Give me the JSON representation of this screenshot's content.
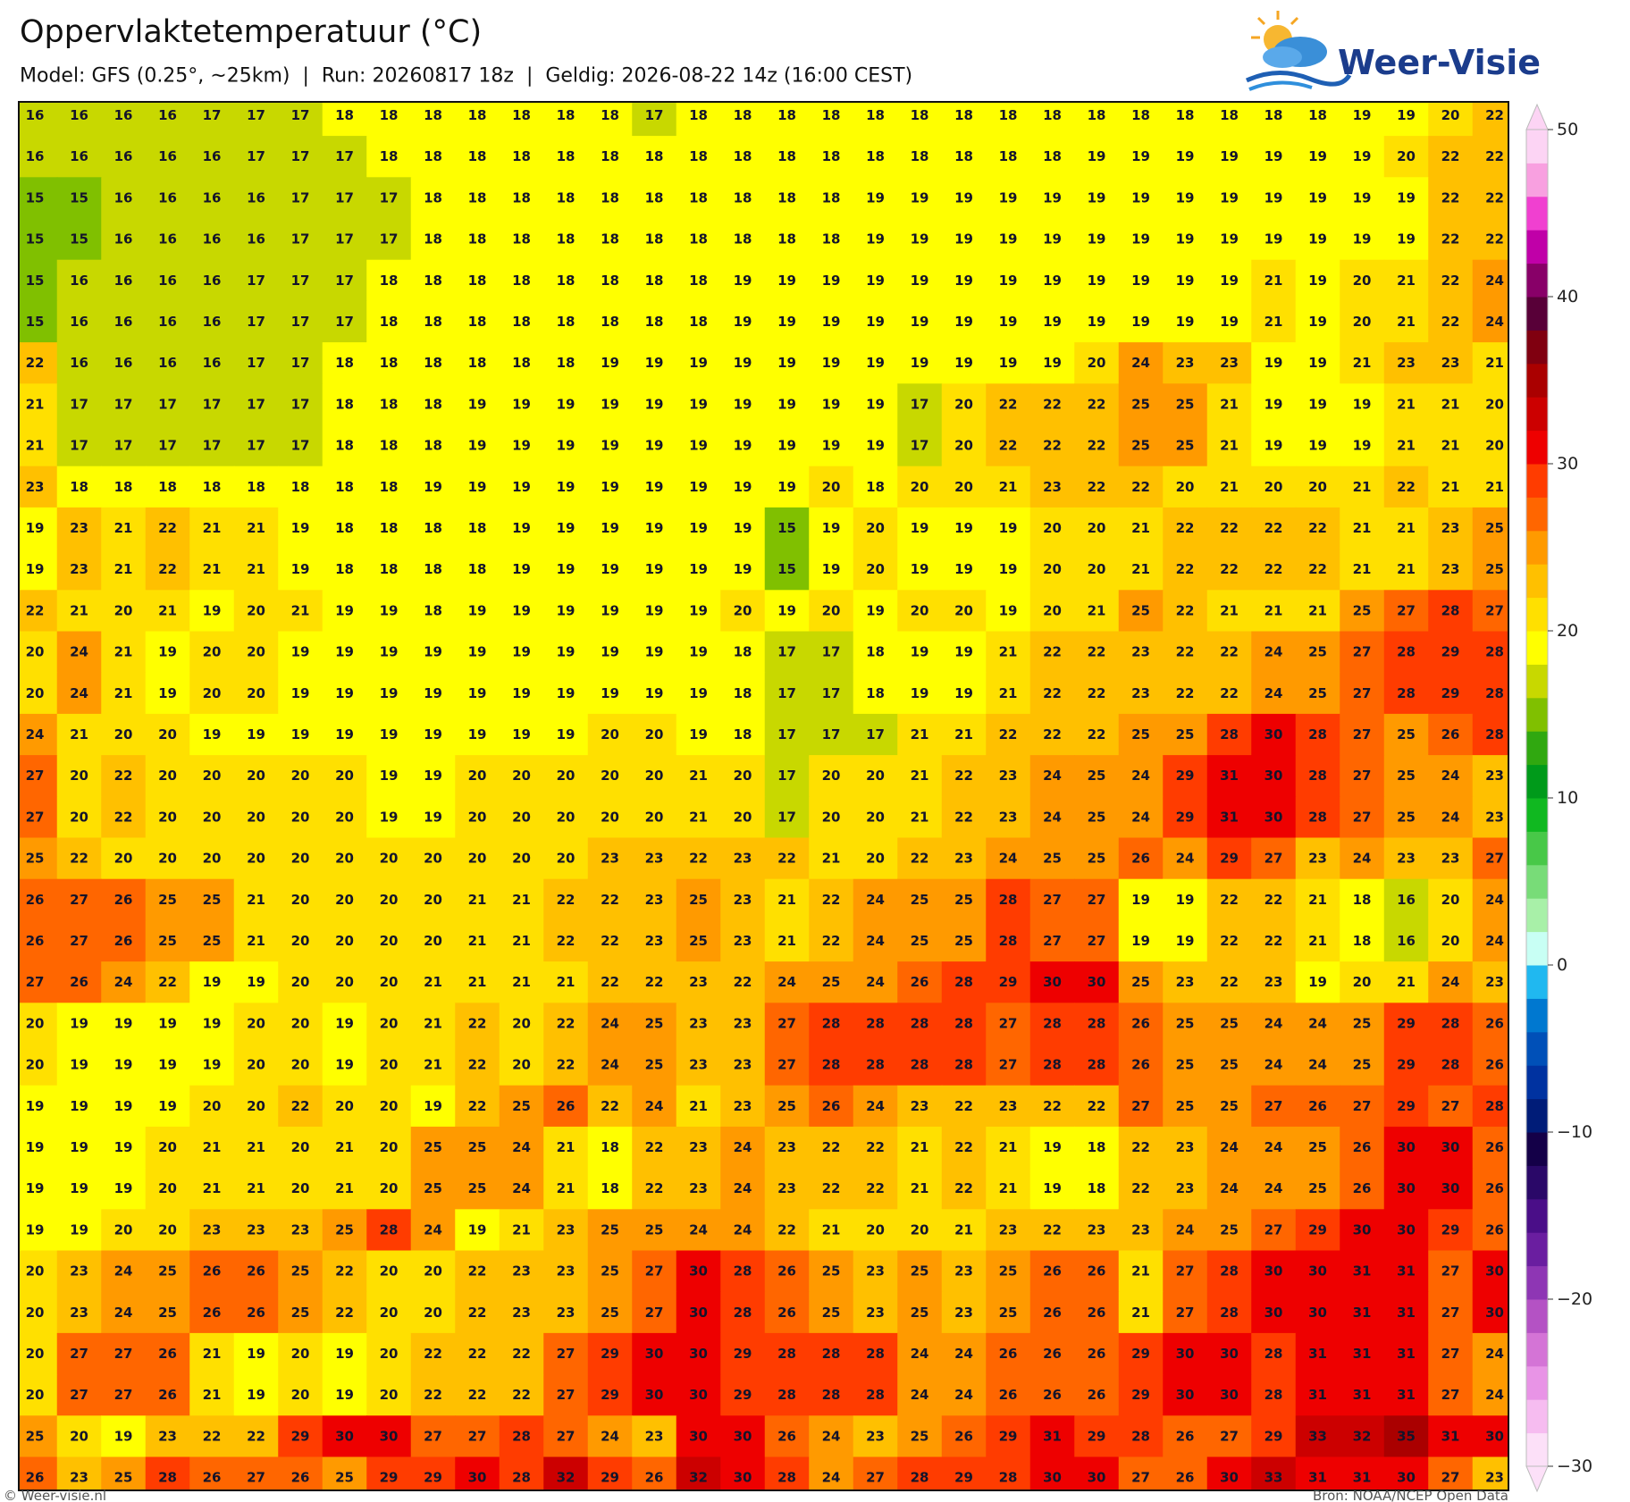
{
  "header": {
    "title": "Oppervlaktetemperatuur (°C)",
    "subtitle": "Model: GFS (0.25°, ~25km)  |  Run: 20260817 18z  |  Geldig: 2026-08-22 14z (16:00 CEST)"
  },
  "logo": "Weer-Visie",
  "map": {
    "values": [
      [
        16,
        16,
        16,
        16,
        17,
        17,
        17,
        18,
        18,
        18,
        18,
        18,
        18,
        18,
        17,
        18,
        18,
        18,
        18,
        18,
        18,
        18,
        18,
        18,
        18,
        18,
        18,
        18,
        18,
        18,
        19,
        19,
        20,
        22
      ],
      [
        16,
        16,
        16,
        16,
        16,
        17,
        17,
        17,
        18,
        18,
        18,
        18,
        18,
        18,
        18,
        18,
        18,
        18,
        18,
        18,
        18,
        18,
        18,
        18,
        19,
        19,
        19,
        19,
        19,
        19,
        19,
        20,
        22,
        22
      ],
      [
        15,
        15,
        16,
        16,
        16,
        16,
        17,
        17,
        17,
        18,
        18,
        18,
        18,
        18,
        18,
        18,
        18,
        18,
        18,
        19,
        19,
        19,
        19,
        19,
        19,
        19,
        19,
        19,
        19,
        19,
        19,
        19,
        22,
        22
      ],
      [
        15,
        15,
        16,
        16,
        16,
        16,
        17,
        17,
        17,
        18,
        18,
        18,
        18,
        18,
        18,
        18,
        18,
        18,
        18,
        19,
        19,
        19,
        19,
        19,
        19,
        19,
        19,
        19,
        19,
        19,
        19,
        19,
        22,
        22
      ],
      [
        15,
        16,
        16,
        16,
        16,
        17,
        17,
        17,
        18,
        18,
        18,
        18,
        18,
        18,
        18,
        18,
        19,
        19,
        19,
        19,
        19,
        19,
        19,
        19,
        19,
        19,
        19,
        19,
        21,
        19,
        20,
        21,
        22,
        24
      ],
      [
        15,
        16,
        16,
        16,
        16,
        17,
        17,
        17,
        18,
        18,
        18,
        18,
        18,
        18,
        18,
        18,
        19,
        19,
        19,
        19,
        19,
        19,
        19,
        19,
        19,
        19,
        19,
        19,
        21,
        19,
        20,
        21,
        22,
        24
      ],
      [
        22,
        16,
        16,
        16,
        16,
        17,
        17,
        18,
        18,
        18,
        18,
        18,
        18,
        19,
        19,
        19,
        19,
        19,
        19,
        19,
        19,
        19,
        19,
        19,
        20,
        24,
        23,
        23,
        19,
        19,
        21,
        23,
        23,
        21
      ],
      [
        21,
        17,
        17,
        17,
        17,
        17,
        17,
        18,
        18,
        18,
        19,
        19,
        19,
        19,
        19,
        19,
        19,
        19,
        19,
        19,
        17,
        20,
        22,
        22,
        22,
        25,
        25,
        21,
        19,
        19,
        19,
        21,
        21,
        20
      ],
      [
        21,
        17,
        17,
        17,
        17,
        17,
        17,
        18,
        18,
        18,
        19,
        19,
        19,
        19,
        19,
        19,
        19,
        19,
        19,
        19,
        17,
        20,
        22,
        22,
        22,
        25,
        25,
        21,
        19,
        19,
        19,
        21,
        21,
        20
      ],
      [
        23,
        18,
        18,
        18,
        18,
        18,
        18,
        18,
        18,
        19,
        19,
        19,
        19,
        19,
        19,
        19,
        19,
        19,
        20,
        18,
        20,
        20,
        21,
        23,
        22,
        22,
        20,
        21,
        20,
        20,
        21,
        22,
        21,
        21
      ],
      [
        19,
        23,
        21,
        22,
        21,
        21,
        19,
        18,
        18,
        18,
        18,
        19,
        19,
        19,
        19,
        19,
        19,
        15,
        19,
        20,
        19,
        19,
        19,
        20,
        20,
        21,
        22,
        22,
        22,
        22,
        21,
        21,
        23,
        25
      ],
      [
        19,
        23,
        21,
        22,
        21,
        21,
        19,
        18,
        18,
        18,
        18,
        19,
        19,
        19,
        19,
        19,
        19,
        15,
        19,
        20,
        19,
        19,
        19,
        20,
        20,
        21,
        22,
        22,
        22,
        22,
        21,
        21,
        23,
        25
      ],
      [
        22,
        21,
        20,
        21,
        19,
        20,
        21,
        19,
        19,
        18,
        19,
        19,
        19,
        19,
        19,
        19,
        20,
        19,
        20,
        19,
        20,
        20,
        19,
        20,
        21,
        25,
        22,
        21,
        21,
        21,
        25,
        27,
        28,
        27
      ],
      [
        20,
        24,
        21,
        19,
        20,
        20,
        19,
        19,
        19,
        19,
        19,
        19,
        19,
        19,
        19,
        19,
        18,
        17,
        17,
        18,
        19,
        19,
        21,
        22,
        22,
        23,
        22,
        22,
        24,
        25,
        27,
        28,
        29,
        28
      ],
      [
        20,
        24,
        21,
        19,
        20,
        20,
        19,
        19,
        19,
        19,
        19,
        19,
        19,
        19,
        19,
        19,
        18,
        17,
        17,
        18,
        19,
        19,
        21,
        22,
        22,
        23,
        22,
        22,
        24,
        25,
        27,
        28,
        29,
        28
      ],
      [
        24,
        21,
        20,
        20,
        19,
        19,
        19,
        19,
        19,
        19,
        19,
        19,
        19,
        20,
        20,
        19,
        18,
        17,
        17,
        17,
        21,
        21,
        22,
        22,
        22,
        25,
        25,
        28,
        30,
        28,
        27,
        25,
        26,
        28
      ],
      [
        27,
        20,
        22,
        20,
        20,
        20,
        20,
        20,
        19,
        19,
        20,
        20,
        20,
        20,
        20,
        21,
        20,
        17,
        20,
        20,
        21,
        22,
        23,
        24,
        25,
        24,
        29,
        31,
        30,
        28,
        27,
        25,
        24,
        23
      ],
      [
        27,
        20,
        22,
        20,
        20,
        20,
        20,
        20,
        19,
        19,
        20,
        20,
        20,
        20,
        20,
        21,
        20,
        17,
        20,
        20,
        21,
        22,
        23,
        24,
        25,
        24,
        29,
        31,
        30,
        28,
        27,
        25,
        24,
        23
      ],
      [
        25,
        22,
        20,
        20,
        20,
        20,
        20,
        20,
        20,
        20,
        20,
        20,
        20,
        23,
        23,
        22,
        23,
        22,
        21,
        20,
        22,
        23,
        24,
        25,
        25,
        26,
        24,
        29,
        27,
        23,
        24,
        23,
        23,
        27
      ],
      [
        26,
        27,
        26,
        25,
        25,
        21,
        20,
        20,
        20,
        20,
        21,
        21,
        22,
        22,
        23,
        25,
        23,
        21,
        22,
        24,
        25,
        25,
        28,
        27,
        27,
        19,
        19,
        22,
        22,
        21,
        18,
        16,
        20,
        24
      ],
      [
        26,
        27,
        26,
        25,
        25,
        21,
        20,
        20,
        20,
        20,
        21,
        21,
        22,
        22,
        23,
        25,
        23,
        21,
        22,
        24,
        25,
        25,
        28,
        27,
        27,
        19,
        19,
        22,
        22,
        21,
        18,
        16,
        20,
        24
      ],
      [
        27,
        26,
        24,
        22,
        19,
        19,
        20,
        20,
        20,
        21,
        21,
        21,
        21,
        22,
        22,
        23,
        22,
        24,
        25,
        24,
        26,
        28,
        29,
        30,
        30,
        25,
        23,
        22,
        23,
        19,
        20,
        21,
        24,
        23
      ],
      [
        20,
        19,
        19,
        19,
        19,
        20,
        20,
        19,
        20,
        21,
        22,
        20,
        22,
        24,
        25,
        23,
        23,
        27,
        28,
        28,
        28,
        28,
        27,
        28,
        28,
        26,
        25,
        25,
        24,
        24,
        25,
        29,
        28,
        26
      ],
      [
        20,
        19,
        19,
        19,
        19,
        20,
        20,
        19,
        20,
        21,
        22,
        20,
        22,
        24,
        25,
        23,
        23,
        27,
        28,
        28,
        28,
        28,
        27,
        28,
        28,
        26,
        25,
        25,
        24,
        24,
        25,
        29,
        28,
        26
      ],
      [
        19,
        19,
        19,
        19,
        20,
        20,
        22,
        20,
        20,
        19,
        22,
        25,
        26,
        22,
        24,
        21,
        23,
        25,
        26,
        24,
        23,
        22,
        23,
        22,
        22,
        27,
        25,
        25,
        27,
        26,
        27,
        29,
        27,
        28
      ],
      [
        19,
        19,
        19,
        20,
        21,
        21,
        20,
        21,
        20,
        25,
        25,
        24,
        21,
        18,
        22,
        23,
        24,
        23,
        22,
        22,
        21,
        22,
        21,
        19,
        18,
        22,
        23,
        24,
        24,
        25,
        26,
        30,
        30,
        26
      ],
      [
        19,
        19,
        19,
        20,
        21,
        21,
        20,
        21,
        20,
        25,
        25,
        24,
        21,
        18,
        22,
        23,
        24,
        23,
        22,
        22,
        21,
        22,
        21,
        19,
        18,
        22,
        23,
        24,
        24,
        25,
        26,
        30,
        30,
        26
      ],
      [
        19,
        19,
        20,
        20,
        23,
        23,
        23,
        25,
        28,
        24,
        19,
        21,
        23,
        25,
        25,
        24,
        24,
        22,
        21,
        20,
        20,
        21,
        23,
        22,
        23,
        23,
        24,
        25,
        27,
        29,
        30,
        30,
        29,
        26
      ],
      [
        20,
        23,
        24,
        25,
        26,
        26,
        25,
        22,
        20,
        20,
        22,
        23,
        23,
        25,
        27,
        30,
        28,
        26,
        25,
        23,
        25,
        23,
        25,
        26,
        26,
        21,
        27,
        28,
        30,
        30,
        31,
        31,
        27,
        30
      ],
      [
        20,
        23,
        24,
        25,
        26,
        26,
        25,
        22,
        20,
        20,
        22,
        23,
        23,
        25,
        27,
        30,
        28,
        26,
        25,
        23,
        25,
        23,
        25,
        26,
        26,
        21,
        27,
        28,
        30,
        30,
        31,
        31,
        27,
        30
      ],
      [
        20,
        27,
        27,
        26,
        21,
        19,
        20,
        19,
        20,
        22,
        22,
        22,
        27,
        29,
        30,
        30,
        29,
        28,
        28,
        28,
        24,
        24,
        26,
        26,
        26,
        29,
        30,
        30,
        28,
        31,
        31,
        31,
        27,
        24
      ],
      [
        20,
        27,
        27,
        26,
        21,
        19,
        20,
        19,
        20,
        22,
        22,
        22,
        27,
        29,
        30,
        30,
        29,
        28,
        28,
        28,
        24,
        24,
        26,
        26,
        26,
        29,
        30,
        30,
        28,
        31,
        31,
        31,
        27,
        24
      ],
      [
        25,
        20,
        19,
        23,
        22,
        22,
        29,
        30,
        30,
        27,
        27,
        28,
        27,
        24,
        23,
        30,
        30,
        26,
        24,
        23,
        25,
        26,
        29,
        31,
        29,
        28,
        26,
        27,
        29,
        33,
        32,
        35,
        31,
        30
      ],
      [
        26,
        23,
        25,
        28,
        26,
        27,
        26,
        25,
        29,
        29,
        30,
        28,
        32,
        29,
        26,
        32,
        30,
        28,
        24,
        27,
        28,
        29,
        28,
        30,
        30,
        27,
        26,
        30,
        33,
        31,
        31,
        30,
        27,
        23
      ]
    ]
  },
  "colorbar": {
    "lim": [
      -30,
      50
    ],
    "ticks": [
      50,
      40,
      30,
      20,
      10,
      0,
      {
        "value": -10,
        "label": "−10"
      },
      {
        "value": -20,
        "label": "−20"
      },
      {
        "value": -30,
        "label": "−30"
      }
    ],
    "colors": [
      "#fce0f8",
      "#f6bcf0",
      "#e894e6",
      "#d474d6",
      "#b452c4",
      "#8e36b4",
      "#6a1ea0",
      "#4a0e88",
      "#2a0868",
      "#140048",
      "#001c78",
      "#0032a0",
      "#0050b8",
      "#0078d0",
      "#20b8f0",
      "#c8fff4",
      "#a8f0a8",
      "#78dc78",
      "#48c848",
      "#10b820",
      "#009a1a",
      "#30a810",
      "#80c000",
      "#c8d800",
      "#ffff00",
      "#ffe000",
      "#ffc000",
      "#ff9a00",
      "#ff6600",
      "#ff3c00",
      "#ee0000",
      "#cc0000",
      "#aa0000",
      "#800010",
      "#580038",
      "#880068",
      "#c000a8",
      "#f040d0",
      "#f8a0e0",
      "#fcd4f4"
    ]
  },
  "footer": {
    "left": "© Weer-visie.nl",
    "right": "Bron: NOAA/NCEP Open Data"
  }
}
